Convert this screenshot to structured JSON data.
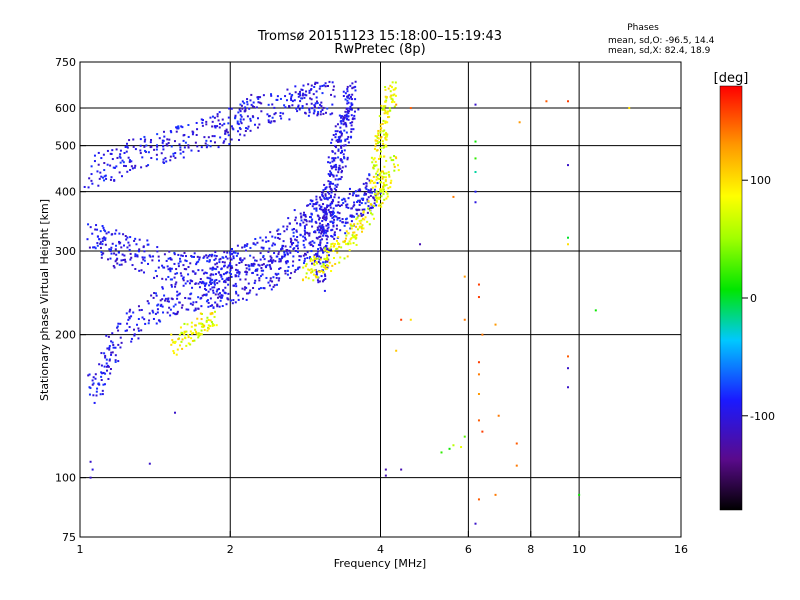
{
  "chart_data": {
    "type": "scatter",
    "title": "Tromsø 20151123 15:18:00–15:19:43",
    "subtitle": "RwPretec (8p)",
    "stats": {
      "heading": "Phases",
      "line1": "mean, sd,O: -96.5, 14.4",
      "line2": "mean, sd,X: 82.4, 18.9"
    },
    "xlabel": "Frequency [MHz]",
    "ylabel": "Stationary phase Virtual Height [km]",
    "xscale": "log",
    "yscale": "log",
    "xlim": [
      1,
      16
    ],
    "ylim": [
      75,
      750
    ],
    "xticks": [
      1,
      2,
      4,
      6,
      8,
      10,
      16
    ],
    "xtick_labels": [
      "1",
      "2",
      "4",
      "6",
      "8",
      "10",
      "16"
    ],
    "yticks": [
      75,
      100,
      200,
      300,
      400,
      500,
      600,
      750
    ],
    "ytick_labels": [
      "75",
      "100",
      "200",
      "300",
      "400",
      "500",
      "600",
      "750"
    ],
    "x_gridlines": [
      2,
      4,
      6,
      8,
      10
    ],
    "y_gridlines": [
      100,
      200,
      300,
      400,
      500,
      600
    ],
    "colorbar": {
      "label": "[deg]",
      "range": [
        -180,
        180
      ],
      "ticks": [
        -100,
        0,
        100
      ],
      "tick_labels": [
        "-100",
        "0",
        "100"
      ]
    },
    "ordinary_trace": {
      "phase_deg": -96,
      "segments": [
        {
          "x": [
            1.05,
            1.2,
            1.5,
            1.8,
            2.0,
            2.4,
            2.8,
            3.2,
            3.6,
            3.9
          ],
          "y": [
            150,
            200,
            235,
            245,
            250,
            270,
            300,
            340,
            380,
            410
          ]
        },
        {
          "x": [
            1.05,
            1.2,
            1.5,
            1.8,
            2.0,
            2.4,
            2.8,
            3.1
          ],
          "y": [
            330,
            300,
            280,
            275,
            280,
            300,
            340,
            380
          ]
        },
        {
          "x": [
            1.05,
            1.3,
            1.6,
            2.0,
            2.3,
            2.8,
            3.2
          ],
          "y": [
            440,
            480,
            510,
            550,
            600,
            620,
            630
          ]
        },
        {
          "x": [
            3.0,
            3.1,
            3.2,
            3.3,
            3.4,
            3.5
          ],
          "y": [
            260,
            330,
            400,
            480,
            560,
            640
          ]
        }
      ]
    },
    "extraordinary_trace": {
      "phase_deg": 82,
      "segments": [
        {
          "x": [
            2.8,
            3.1,
            3.4,
            3.7,
            4.0,
            4.3
          ],
          "y": [
            270,
            285,
            310,
            350,
            400,
            470
          ]
        },
        {
          "x": [
            3.9,
            4.0,
            4.1,
            4.2
          ],
          "y": [
            420,
            500,
            580,
            650
          ]
        },
        {
          "x": [
            1.55,
            1.7,
            1.85
          ],
          "y": [
            190,
            205,
            215
          ]
        }
      ]
    },
    "scattered_points": [
      {
        "x": 4.3,
        "y": 610,
        "phase_deg": 130
      },
      {
        "x": 4.6,
        "y": 600,
        "phase_deg": 150
      },
      {
        "x": 6.2,
        "y": 610,
        "phase_deg": -110
      },
      {
        "x": 6.2,
        "y": 510,
        "phase_deg": 10
      },
      {
        "x": 6.2,
        "y": 470,
        "phase_deg": 20
      },
      {
        "x": 6.2,
        "y": 440,
        "phase_deg": -20
      },
      {
        "x": 6.2,
        "y": 400,
        "phase_deg": -90
      },
      {
        "x": 6.2,
        "y": 380,
        "phase_deg": -100
      },
      {
        "x": 5.6,
        "y": 390,
        "phase_deg": 140
      },
      {
        "x": 4.8,
        "y": 310,
        "phase_deg": -120
      },
      {
        "x": 5.9,
        "y": 265,
        "phase_deg": 130
      },
      {
        "x": 6.3,
        "y": 255,
        "phase_deg": 160
      },
      {
        "x": 6.3,
        "y": 240,
        "phase_deg": 160
      },
      {
        "x": 4.4,
        "y": 215,
        "phase_deg": 160
      },
      {
        "x": 4.6,
        "y": 215,
        "phase_deg": 100
      },
      {
        "x": 4.3,
        "y": 185,
        "phase_deg": 110
      },
      {
        "x": 5.9,
        "y": 215,
        "phase_deg": 140
      },
      {
        "x": 6.4,
        "y": 200,
        "phase_deg": 140
      },
      {
        "x": 6.8,
        "y": 210,
        "phase_deg": 130
      },
      {
        "x": 7.6,
        "y": 560,
        "phase_deg": 130
      },
      {
        "x": 8.6,
        "y": 620,
        "phase_deg": 150
      },
      {
        "x": 9.5,
        "y": 620,
        "phase_deg": 160
      },
      {
        "x": 9.5,
        "y": 455,
        "phase_deg": -110
      },
      {
        "x": 9.5,
        "y": 320,
        "phase_deg": 0
      },
      {
        "x": 9.5,
        "y": 310,
        "phase_deg": 100
      },
      {
        "x": 9.5,
        "y": 180,
        "phase_deg": 150
      },
      {
        "x": 9.5,
        "y": 170,
        "phase_deg": -110
      },
      {
        "x": 9.5,
        "y": 155,
        "phase_deg": -110
      },
      {
        "x": 10.8,
        "y": 225,
        "phase_deg": 10
      },
      {
        "x": 12.6,
        "y": 600,
        "phase_deg": 100
      },
      {
        "x": 6.3,
        "y": 175,
        "phase_deg": 160
      },
      {
        "x": 6.3,
        "y": 165,
        "phase_deg": 140
      },
      {
        "x": 6.3,
        "y": 150,
        "phase_deg": 130
      },
      {
        "x": 6.3,
        "y": 132,
        "phase_deg": 150
      },
      {
        "x": 6.4,
        "y": 125,
        "phase_deg": 160
      },
      {
        "x": 6.9,
        "y": 135,
        "phase_deg": 140
      },
      {
        "x": 7.5,
        "y": 118,
        "phase_deg": 150
      },
      {
        "x": 7.5,
        "y": 106,
        "phase_deg": 140
      },
      {
        "x": 5.5,
        "y": 115,
        "phase_deg": 10
      },
      {
        "x": 5.6,
        "y": 117,
        "phase_deg": 60
      },
      {
        "x": 5.8,
        "y": 116,
        "phase_deg": 80
      },
      {
        "x": 5.9,
        "y": 122,
        "phase_deg": 30
      },
      {
        "x": 5.3,
        "y": 113,
        "phase_deg": 20
      },
      {
        "x": 4.1,
        "y": 104,
        "phase_deg": -120
      },
      {
        "x": 4.1,
        "y": 101,
        "phase_deg": -120
      },
      {
        "x": 4.4,
        "y": 104,
        "phase_deg": -120
      },
      {
        "x": 6.3,
        "y": 90,
        "phase_deg": 150
      },
      {
        "x": 6.8,
        "y": 92,
        "phase_deg": 140
      },
      {
        "x": 6.2,
        "y": 80,
        "phase_deg": -110
      },
      {
        "x": 10.0,
        "y": 92,
        "phase_deg": 10
      },
      {
        "x": 1.05,
        "y": 108,
        "phase_deg": -110
      },
      {
        "x": 1.06,
        "y": 104,
        "phase_deg": -100
      },
      {
        "x": 1.05,
        "y": 100,
        "phase_deg": -110
      },
      {
        "x": 1.38,
        "y": 107,
        "phase_deg": -110
      },
      {
        "x": 1.55,
        "y": 137,
        "phase_deg": -110
      }
    ]
  }
}
